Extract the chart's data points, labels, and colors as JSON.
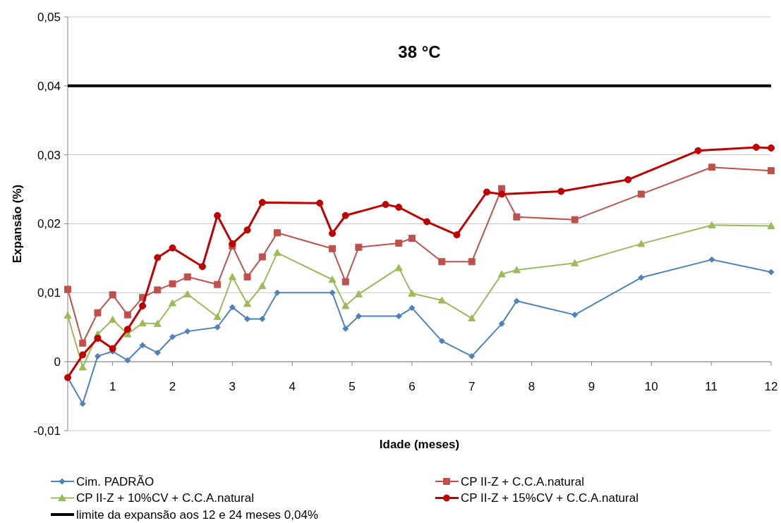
{
  "chart_data": {
    "type": "line",
    "xlabel": "Idade (meses)",
    "ylabel": "Expansão (%)",
    "annotations": [
      "38 °C"
    ],
    "xlim": [
      0.25,
      12
    ],
    "xticks": [
      1,
      2,
      3,
      4,
      5,
      6,
      7,
      8,
      9,
      10,
      11,
      12
    ],
    "ylim": [
      -0.01,
      0.05
    ],
    "yticks": [
      {
        "value": -0.01,
        "label": "-0,01"
      },
      0,
      {
        "value": 0.01,
        "label": "0,01"
      },
      {
        "value": 0.02,
        "label": "0,02"
      },
      {
        "value": 0.03,
        "label": "0,03"
      },
      {
        "value": 0.04,
        "label": "0,04"
      },
      {
        "value": 0.05,
        "label": "0,05"
      }
    ],
    "grid": "y",
    "legend": "bottom",
    "ref_lines": [
      {
        "axis": "y",
        "value": 0.04,
        "label": "limite da expansão aos 12 e 24 meses 0,04%",
        "color": "#000000"
      }
    ],
    "series": [
      {
        "name": "Cim. PADRÃO",
        "color": "#4f81bd",
        "marker": "diamond",
        "x": [
          0.25,
          0.5,
          0.75,
          1,
          1.25,
          1.5,
          1.75,
          2,
          2.25,
          2.75,
          3,
          3.25,
          3.5,
          3.75,
          4.67,
          4.89,
          5.11,
          5.78,
          6,
          6.5,
          7,
          7.5,
          7.75,
          8.72,
          9.83,
          11.01,
          12
        ],
        "values": [
          -0.0023,
          -0.0061,
          0.0008,
          0.0015,
          0.0002,
          0.0024,
          0.0013,
          0.0036,
          0.0044,
          0.005,
          0.0079,
          0.0062,
          0.0062,
          0.01,
          0.01,
          0.0048,
          0.0066,
          0.0066,
          0.0078,
          0.003,
          0.0008,
          0.0055,
          0.0088,
          0.0068,
          0.0122,
          0.0148,
          0.013
        ]
      },
      {
        "name": "CP II-Z + C.C.A.natural",
        "color": "#c0504d",
        "marker": "square",
        "x": [
          0.25,
          0.5,
          0.75,
          1,
          1.25,
          1.5,
          1.75,
          2,
          2.25,
          2.75,
          3,
          3.25,
          3.5,
          3.75,
          4.67,
          4.89,
          5.11,
          5.78,
          6,
          6.5,
          7,
          7.5,
          7.75,
          8.72,
          9.83,
          11.01,
          12
        ],
        "values": [
          0.0105,
          0.0027,
          0.0071,
          0.0097,
          0.0068,
          0.0093,
          0.0104,
          0.0113,
          0.0123,
          0.0112,
          0.0168,
          0.0123,
          0.0152,
          0.0187,
          0.0164,
          0.0116,
          0.0166,
          0.0172,
          0.0179,
          0.0145,
          0.0145,
          0.0251,
          0.021,
          0.0206,
          0.0243,
          0.0282,
          0.0277
        ]
      },
      {
        "name": "CP II-Z + 10%CV + C.C.A.natural",
        "color": "#9bbb59",
        "marker": "triangle",
        "x": [
          0.25,
          0.5,
          0.75,
          1,
          1.25,
          1.5,
          1.75,
          2,
          2.25,
          2.75,
          3,
          3.25,
          3.5,
          3.75,
          4.67,
          4.89,
          5.11,
          5.78,
          6,
          6.5,
          7,
          7.5,
          7.75,
          8.72,
          9.83,
          11.01,
          12
        ],
        "values": [
          0.0067,
          -0.0008,
          0.004,
          0.0061,
          0.004,
          0.0056,
          0.0055,
          0.0085,
          0.0098,
          0.0065,
          0.0123,
          0.0084,
          0.011,
          0.0158,
          0.0119,
          0.0081,
          0.0098,
          0.0136,
          0.0099,
          0.0089,
          0.0063,
          0.0127,
          0.0133,
          0.0143,
          0.0171,
          0.0198,
          0.0197
        ]
      },
      {
        "name": "CP II-Z + 15%CV + C.C.A.natural",
        "color": "#c00000",
        "marker": "circle",
        "x": [
          0.25,
          0.5,
          0.75,
          1,
          1.25,
          1.5,
          1.75,
          2,
          2.5,
          2.75,
          3,
          3.25,
          3.5,
          4.46,
          4.67,
          4.89,
          5.56,
          5.78,
          6.25,
          6.75,
          7.25,
          7.5,
          8.49,
          9.61,
          10.78,
          11.75,
          12
        ],
        "values": [
          -0.0023,
          0.001,
          0.0034,
          0.0019,
          0.0047,
          0.0081,
          0.0151,
          0.0165,
          0.0138,
          0.0212,
          0.0171,
          0.0191,
          0.0231,
          0.023,
          0.0186,
          0.0212,
          0.0228,
          0.0224,
          0.0203,
          0.0184,
          0.0246,
          0.0243,
          0.0247,
          0.0264,
          0.0306,
          0.0311,
          0.031
        ]
      }
    ]
  }
}
